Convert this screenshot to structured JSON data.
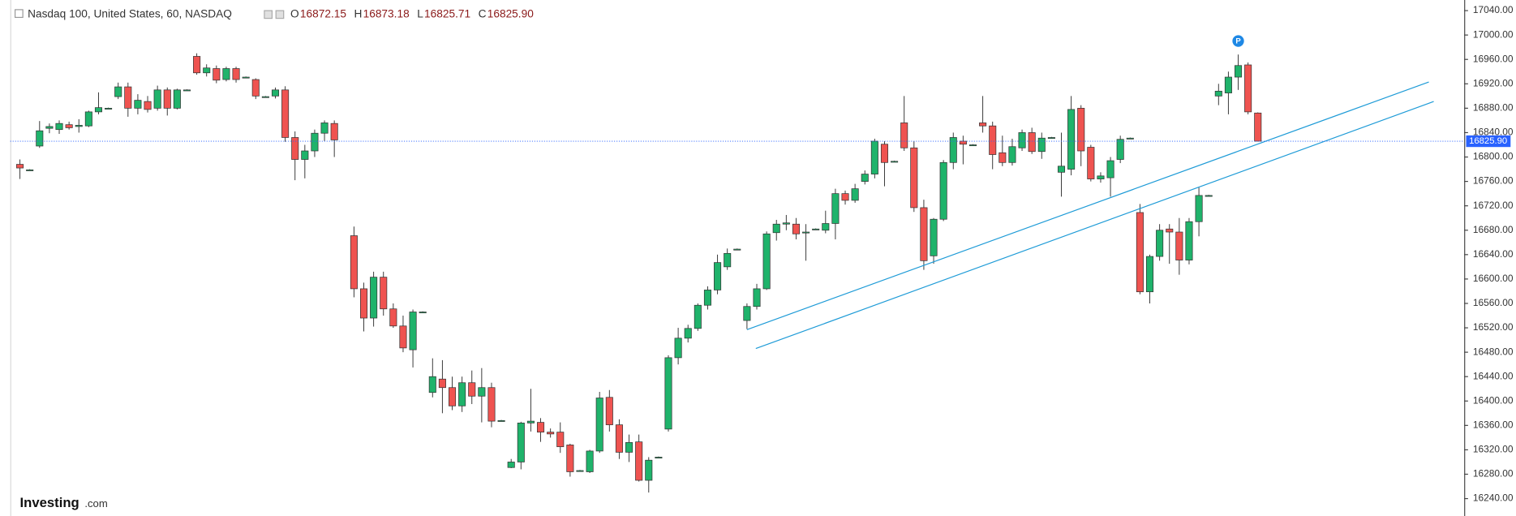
{
  "chart_data": {
    "type": "candlestick",
    "header": {
      "symbol": "Nasdaq 100, United States, 60, NASDAQ",
      "ohlc": [
        {
          "label": "O",
          "value": "16872.15"
        },
        {
          "label": "H",
          "value": "16873.18"
        },
        {
          "label": "L",
          "value": "16825.71"
        },
        {
          "label": "C",
          "value": "16825.90"
        }
      ]
    },
    "up_color": "#1fb36b",
    "down_color": "#ef5350",
    "ylim": [
      16211.5,
      17057.4
    ],
    "yticks": [
      {
        "value": 17040,
        "label": "17040.00"
      },
      {
        "value": 17000,
        "label": "17000.00"
      },
      {
        "value": 16960,
        "label": "16960.00"
      },
      {
        "value": 16920,
        "label": "16920.00"
      },
      {
        "value": 16880,
        "label": "16880.00"
      },
      {
        "value": 16840,
        "label": "16840.00"
      },
      {
        "value": 16800,
        "label": "16800.00"
      },
      {
        "value": 16760,
        "label": "16760.00"
      },
      {
        "value": 16720,
        "label": "16720.00"
      },
      {
        "value": 16680,
        "label": "16680.00"
      },
      {
        "value": 16640,
        "label": "16640.00"
      },
      {
        "value": 16600,
        "label": "16600.00"
      },
      {
        "value": 16560,
        "label": "16560.00"
      },
      {
        "value": 16520,
        "label": "16520.00"
      },
      {
        "value": 16480,
        "label": "16480.00"
      },
      {
        "value": 16440,
        "label": "16440.00"
      },
      {
        "value": 16400,
        "label": "16400.00"
      },
      {
        "value": 16360,
        "label": "16360.00"
      },
      {
        "value": 16320,
        "label": "16320.00"
      },
      {
        "value": 16280,
        "label": "16280.00"
      },
      {
        "value": 16240,
        "label": "16240.00"
      }
    ],
    "current_price": {
      "value": 16825.9,
      "label": "16825.90",
      "color": "#2962ff"
    },
    "marker": {
      "label": "P",
      "color": "#1e88e5"
    },
    "trendline_color": "#1e9bd7",
    "trendlines": [
      {
        "x": [
          74,
          143.4
        ],
        "y": [
          16517,
          16923
        ]
      },
      {
        "x": [
          74.9,
          143.9
        ],
        "y": [
          16486,
          16891
        ]
      }
    ],
    "candles": [
      [
        16788,
        16796,
        16764,
        16782
      ],
      [
        16779,
        16780,
        16778,
        16779
      ],
      [
        16818,
        16859,
        16815,
        16843
      ],
      [
        16847,
        16855,
        16839,
        16850
      ],
      [
        16845,
        16860,
        16838,
        16855
      ],
      [
        16853,
        16858,
        16845,
        16848
      ],
      [
        16850,
        16862,
        16840,
        16852
      ],
      [
        16851,
        16876,
        16849,
        16874
      ],
      [
        16874,
        16906,
        16870,
        16881
      ],
      [
        16880,
        16881,
        16879,
        16880
      ],
      [
        16899,
        16922,
        16895,
        16915
      ],
      [
        16915,
        16922,
        16866,
        16880
      ],
      [
        16880,
        16903,
        16870,
        16893
      ],
      [
        16891,
        16900,
        16873,
        16878
      ],
      [
        16880,
        16917,
        16876,
        16910
      ],
      [
        16910,
        16914,
        16868,
        16880
      ],
      [
        16880,
        16912,
        16878,
        16910
      ],
      [
        16910,
        16911,
        16909,
        16910
      ],
      [
        16965,
        16970,
        16935,
        16938
      ],
      [
        16938,
        16952,
        16932,
        16946
      ],
      [
        16945,
        16950,
        16921,
        16926
      ],
      [
        16927,
        16948,
        16924,
        16945
      ],
      [
        16945,
        16948,
        16922,
        16927
      ],
      [
        16931,
        16932,
        16930,
        16931
      ],
      [
        16927,
        16929,
        16895,
        16900
      ],
      [
        16899,
        16900,
        16898,
        16899
      ],
      [
        16900,
        16914,
        16896,
        16910
      ],
      [
        16910,
        16916,
        16825,
        16832
      ],
      [
        16832,
        16842,
        16762,
        16796
      ],
      [
        16796,
        16820,
        16765,
        16810
      ],
      [
        16810,
        16845,
        16800,
        16839
      ],
      [
        16839,
        16860,
        16826,
        16856
      ],
      [
        16855,
        16860,
        16800,
        16828
      ],
      null,
      [
        16671,
        16686,
        16570,
        16584
      ],
      [
        16584,
        16594,
        16514,
        16536
      ],
      [
        16536,
        16612,
        16522,
        16603
      ],
      [
        16603,
        16612,
        16540,
        16551
      ],
      [
        16551,
        16560,
        16520,
        16523
      ],
      [
        16523,
        16540,
        16480,
        16487
      ],
      [
        16484,
        16550,
        16455,
        16546
      ],
      [
        16546,
        16547,
        16545,
        16546
      ],
      [
        16414,
        16470,
        16406,
        16440
      ],
      [
        16436,
        16467,
        16380,
        16422
      ],
      [
        16422,
        16440,
        16385,
        16392
      ],
      [
        16392,
        16440,
        16382,
        16430
      ],
      [
        16430,
        16450,
        16395,
        16408
      ],
      [
        16408,
        16454,
        16365,
        16422
      ],
      [
        16422,
        16430,
        16357,
        16367
      ],
      [
        16368,
        16369,
        16367,
        16368
      ],
      [
        16291,
        16305,
        16290,
        16300
      ],
      [
        16300,
        16366,
        16288,
        16364
      ],
      [
        16364,
        16420,
        16350,
        16367
      ],
      [
        16365,
        16372,
        16333,
        16349
      ],
      [
        16349,
        16355,
        16340,
        16346
      ],
      [
        16349,
        16365,
        16315,
        16325
      ],
      [
        16328,
        16330,
        16276,
        16284
      ],
      [
        16286,
        16287,
        16285,
        16286
      ],
      [
        16284,
        16320,
        16282,
        16318
      ],
      [
        16318,
        16415,
        16315,
        16405
      ],
      [
        16406,
        16418,
        16350,
        16361
      ],
      [
        16361,
        16370,
        16305,
        16316
      ],
      [
        16316,
        16345,
        16300,
        16332
      ],
      [
        16333,
        16345,
        16268,
        16270
      ],
      [
        16270,
        16308,
        16250,
        16303
      ],
      [
        16308,
        16309,
        16307,
        16308
      ],
      [
        16354,
        16475,
        16350,
        16471
      ],
      [
        16471,
        16520,
        16460,
        16503
      ],
      [
        16503,
        16525,
        16496,
        16519
      ],
      [
        16519,
        16560,
        16515,
        16557
      ],
      [
        16557,
        16588,
        16550,
        16582
      ],
      [
        16582,
        16640,
        16575,
        16627
      ],
      [
        16620,
        16650,
        16615,
        16642
      ],
      [
        16649,
        16650,
        16648,
        16649
      ],
      [
        16532,
        16560,
        16518,
        16555
      ],
      [
        16555,
        16592,
        16550,
        16584
      ],
      [
        16584,
        16678,
        16582,
        16674
      ],
      [
        16676,
        16697,
        16663,
        16690
      ],
      [
        16690,
        16705,
        16680,
        16692
      ],
      [
        16690,
        16700,
        16665,
        16674
      ],
      [
        16676,
        16690,
        16630,
        16677
      ],
      [
        16682,
        16683,
        16681,
        16682
      ],
      [
        16680,
        16712,
        16675,
        16691
      ],
      [
        16691,
        16748,
        16665,
        16740
      ],
      [
        16740,
        16745,
        16722,
        16729
      ],
      [
        16729,
        16756,
        16725,
        16748
      ],
      [
        16760,
        16778,
        16755,
        16772
      ],
      [
        16772,
        16830,
        16765,
        16826
      ],
      [
        16821,
        16826,
        16752,
        16791
      ],
      [
        16793,
        16794,
        16792,
        16793
      ],
      [
        16856,
        16900,
        16810,
        16815
      ],
      [
        16815,
        16826,
        16710,
        16717
      ],
      [
        16717,
        16730,
        16615,
        16630
      ],
      [
        16638,
        16700,
        16625,
        16698
      ],
      [
        16698,
        16795,
        16695,
        16791
      ],
      [
        16791,
        16840,
        16780,
        16832
      ],
      [
        16826,
        16835,
        16788,
        16821
      ],
      [
        16820,
        16821,
        16819,
        16820
      ],
      [
        16856,
        16900,
        16840,
        16851
      ],
      [
        16851,
        16858,
        16780,
        16804
      ],
      [
        16807,
        16835,
        16785,
        16791
      ],
      [
        16791,
        16830,
        16786,
        16817
      ],
      [
        16815,
        16845,
        16810,
        16840
      ],
      [
        16840,
        16848,
        16805,
        16809
      ],
      [
        16809,
        16840,
        16797,
        16831
      ],
      [
        16832,
        16833,
        16831,
        16832
      ],
      [
        16775,
        16840,
        16735,
        16785
      ],
      [
        16780,
        16900,
        16770,
        16878
      ],
      [
        16880,
        16885,
        16785,
        16810
      ],
      [
        16816,
        16820,
        16760,
        16764
      ],
      [
        16764,
        16775,
        16758,
        16769
      ],
      [
        16766,
        16800,
        16735,
        16794
      ],
      [
        16796,
        16835,
        16790,
        16829
      ],
      [
        16831,
        16832,
        16830,
        16831
      ],
      [
        16709,
        16723,
        16575,
        16579
      ],
      [
        16579,
        16640,
        16560,
        16637
      ],
      [
        16637,
        16690,
        16630,
        16680
      ],
      [
        16682,
        16690,
        16625,
        16677
      ],
      [
        16677,
        16700,
        16607,
        16631
      ],
      [
        16631,
        16700,
        16624,
        16694
      ],
      [
        16694,
        16750,
        16670,
        16737
      ],
      [
        16737,
        16738,
        16736,
        16737
      ],
      [
        16900,
        16920,
        16885,
        16908
      ],
      [
        16905,
        16940,
        16870,
        16931
      ],
      [
        16931,
        16968,
        16910,
        16950
      ],
      [
        16951,
        16955,
        16870,
        16874
      ],
      [
        16872.15,
        16873.18,
        16825.71,
        16825.9
      ]
    ],
    "logo": {
      "brand": "Investing",
      "suffix": ".com"
    }
  }
}
